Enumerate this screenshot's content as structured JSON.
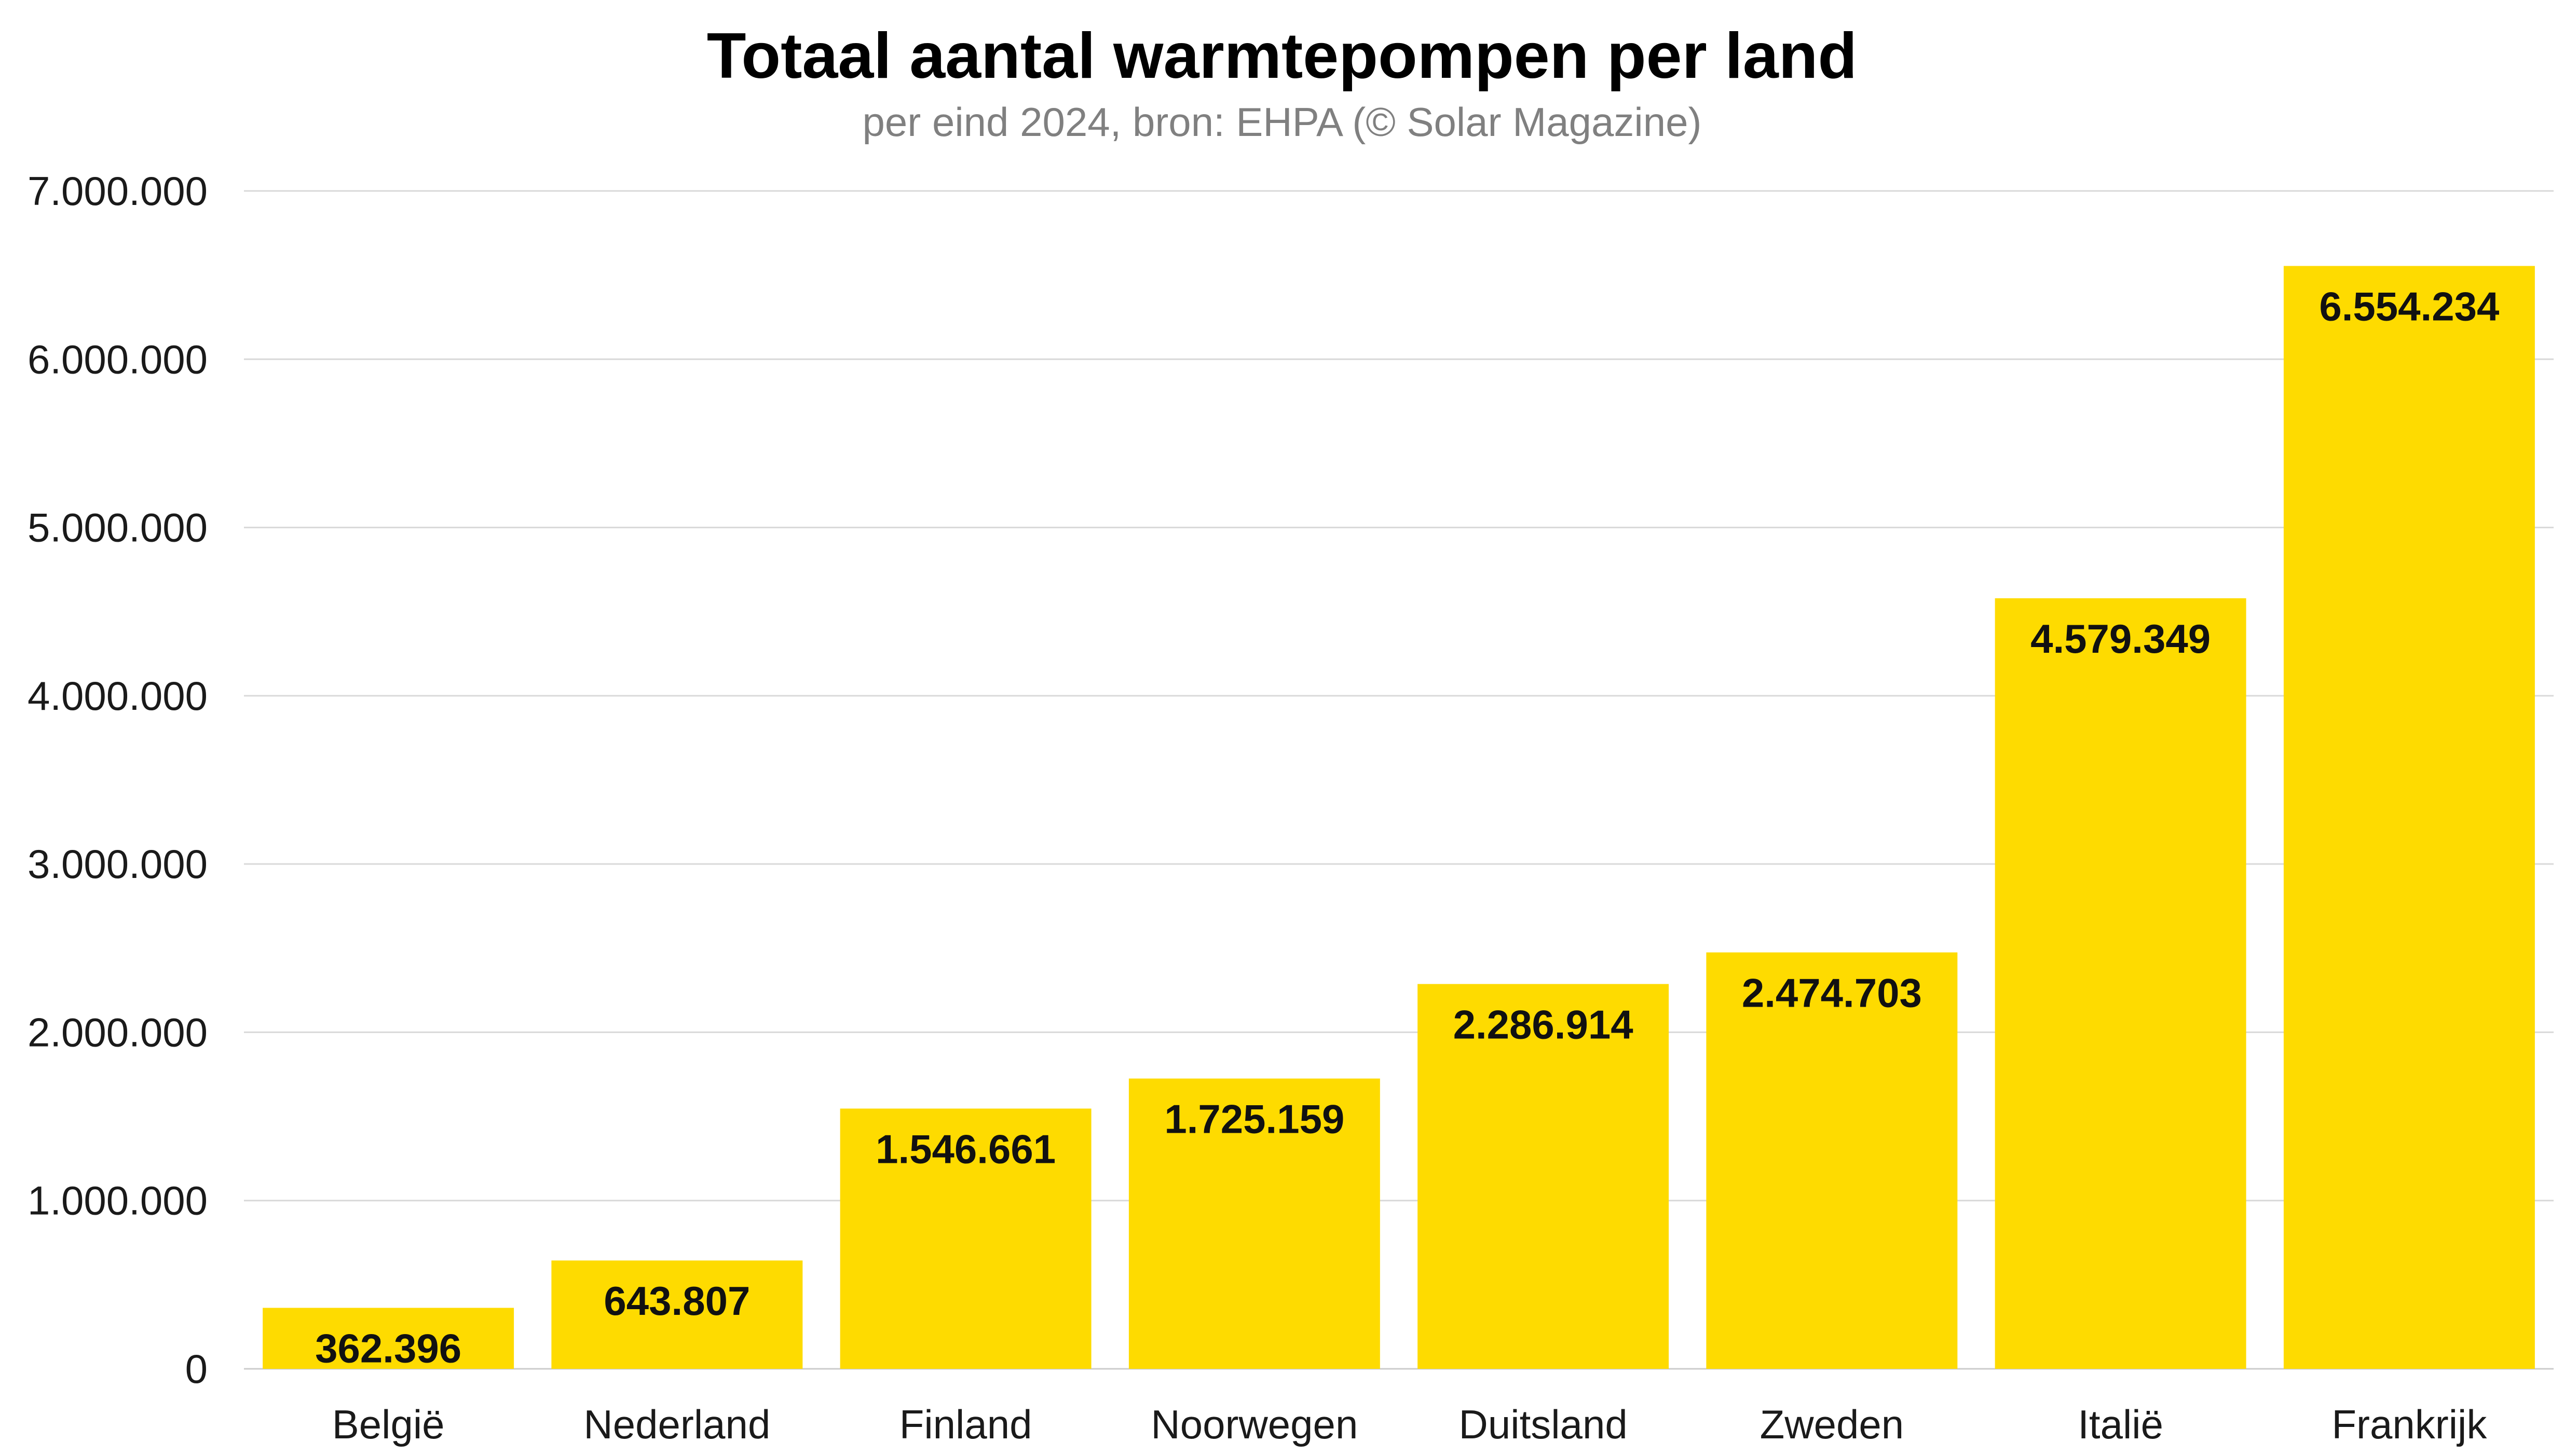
{
  "title": "Totaal aantal warmtepompen per land",
  "subtitle": "per eind 2024, bron: EHPA (© Solar Magazine)",
  "colors": {
    "bar": "#FEDB00",
    "grid": "#d9d9d9",
    "text": "#1a1a1a",
    "subtitle": "#808080"
  },
  "chart_data": {
    "type": "bar",
    "title": "Totaal aantal warmtepompen per land",
    "subtitle": "per eind 2024, bron: EHPA (© Solar Magazine)",
    "xlabel": "",
    "ylabel": "",
    "ylim": [
      0,
      7000000
    ],
    "grid": true,
    "legend": "none",
    "categories": [
      "België",
      "Nederland",
      "Finland",
      "Noorwegen",
      "Duitsland",
      "Zweden",
      "Italië",
      "Frankrijk"
    ],
    "values": [
      362396,
      643807,
      1546661,
      1725159,
      2286914,
      2474703,
      4579349,
      6554234
    ],
    "value_labels": [
      "362.396",
      "643.807",
      "1.546.661",
      "1.725.159",
      "2.286.914",
      "2.474.703",
      "4.579.349",
      "6.554.234"
    ],
    "yticks": [
      0,
      1000000,
      2000000,
      3000000,
      4000000,
      5000000,
      6000000,
      7000000
    ],
    "ytick_labels": [
      "0",
      "1.000.000",
      "2.000.000",
      "3.000.000",
      "4.000.000",
      "5.000.000",
      "6.000.000",
      "7.000.000"
    ]
  }
}
